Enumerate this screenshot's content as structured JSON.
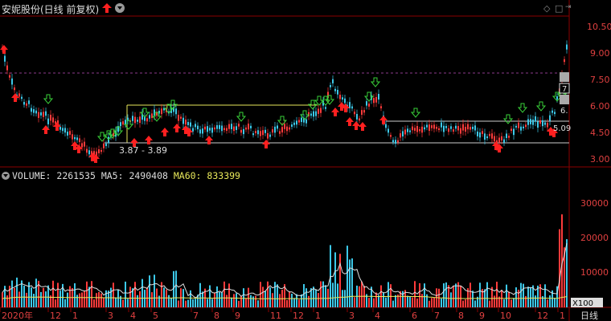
{
  "header": {
    "title": "安妮股份(日线 前复权)",
    "right_icons": [
      "diamond-icon",
      "square-icon",
      "exit-icon"
    ]
  },
  "price_axis": {
    "ticks": [
      "10.50",
      "9.00",
      "7.50",
      "6.00",
      "4.50",
      "3.00"
    ]
  },
  "annotations": {
    "range_label": "3.87 - 3.89",
    "right_label_1": "7",
    "right_label_2": "6.",
    "right_label_3": "5.09"
  },
  "volume": {
    "label": "VOLUME:",
    "value": "2261535",
    "ma5_label": "MA5:",
    "ma5_value": "2490408",
    "ma60_label": "MA60:",
    "ma60_value": "833399",
    "axis_ticks": [
      "30000",
      "20000",
      "10000"
    ],
    "unit": "X100"
  },
  "x_axis": {
    "labels": [
      "2020年",
      "12",
      "1",
      "3",
      "4",
      "5",
      "7",
      "8",
      "9",
      "11",
      "12",
      "1",
      "3",
      "4",
      "6",
      "7",
      "8",
      "9",
      "10",
      "12",
      "1"
    ],
    "period_label": "日线"
  },
  "colors": {
    "up": "#ff3b3b",
    "down": "#3cc8e8",
    "ma": "#e8e85a",
    "grid": "#8b0000",
    "arrow_buy": "#ff2020",
    "arrow_sell": "#39d039"
  }
}
